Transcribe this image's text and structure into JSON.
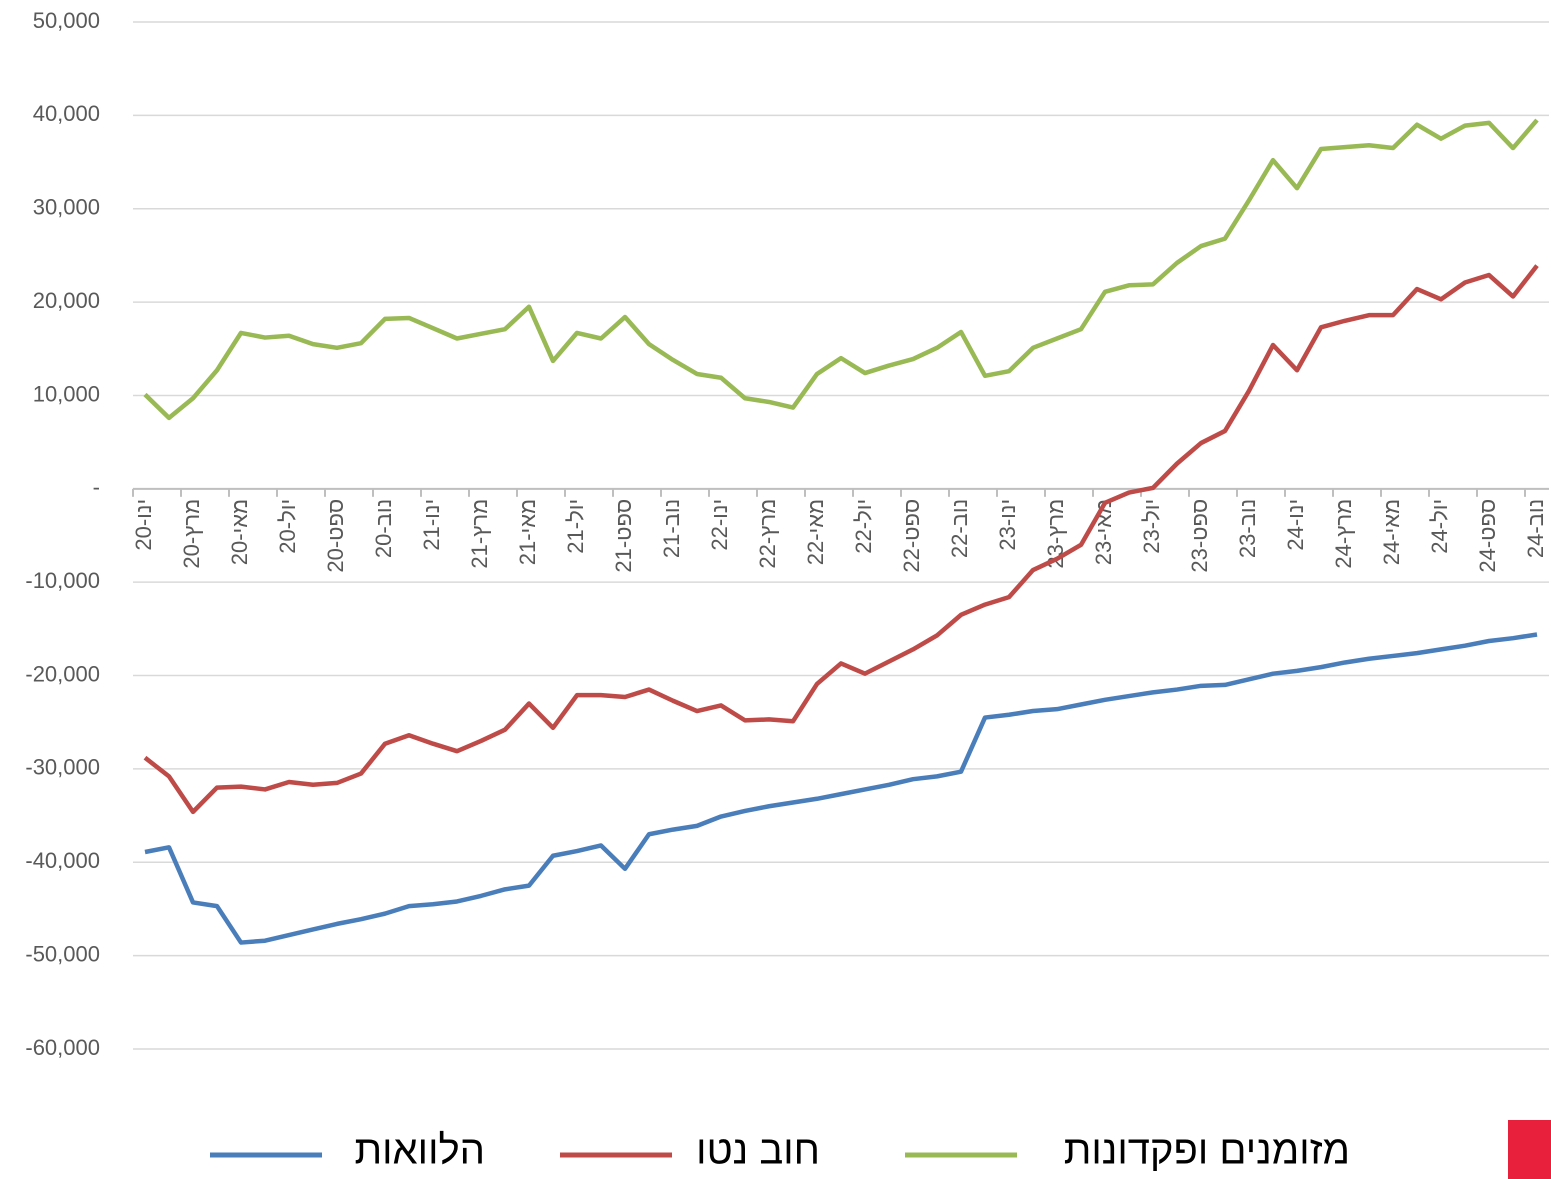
{
  "chart_data": {
    "type": "line",
    "categories": [
      "ינו-20",
      null,
      "מרץ-20",
      null,
      "מאי-20",
      null,
      "יול-20",
      null,
      "ספט-20",
      null,
      "נוב-20",
      null,
      "ינו-21",
      null,
      "מרץ-21",
      null,
      "מאי-21",
      null,
      "יול-21",
      null,
      "ספט-21",
      null,
      "נוב-21",
      null,
      "ינו-22",
      null,
      "מרץ-22",
      null,
      "מאי-22",
      null,
      "יול-22",
      null,
      "ספט-22",
      null,
      "נוב-22",
      null,
      "ינו-23",
      null,
      "מרץ-23",
      null,
      "מאי-23",
      null,
      "יול-23",
      null,
      "ספט-23",
      null,
      "נוב-23",
      null,
      "ינו-24",
      null,
      "מרץ-24",
      null,
      "מאי-24",
      null,
      "יול-24",
      null,
      "ספט-24",
      null,
      "נוב-24"
    ],
    "series": [
      {
        "name": "הלוואות",
        "color": "#4a7ebb",
        "values": [
          -38900,
          -38400,
          -44300,
          -44700,
          -48600,
          -48400,
          -47800,
          -47200,
          -46600,
          -46100,
          -45500,
          -44700,
          -44500,
          -44200,
          -43600,
          -42900,
          -42500,
          -39300,
          -38800,
          -38200,
          -40700,
          -37000,
          -36500,
          -36100,
          -35100,
          -34500,
          -34000,
          -33600,
          -33200,
          -32700,
          -32200,
          -31700,
          -31100,
          -30800,
          -30300,
          -24500,
          -24200,
          -23800,
          -23600,
          -23100,
          -22600,
          -22200,
          -21800,
          -21500,
          -21100,
          -21000,
          -20400,
          -19800,
          -19500,
          -19100,
          -18600,
          -18200,
          -17900,
          -17600,
          -17200,
          -16800,
          -16300,
          -16000,
          -15600
        ]
      },
      {
        "name": "חוב נטו",
        "color": "#be4b48",
        "values": [
          -28800,
          -30800,
          -34600,
          -32000,
          -31900,
          -32200,
          -31400,
          -31700,
          -31500,
          -30500,
          -27300,
          -26400,
          -27300,
          -28100,
          -27000,
          -25800,
          -23000,
          -25600,
          -22100,
          -22100,
          -22300,
          -21500,
          -22700,
          -23800,
          -23200,
          -24800,
          -24700,
          -24900,
          -20900,
          -18700,
          -19800,
          -18500,
          -17200,
          -15700,
          -13500,
          -12400,
          -11600,
          -8700,
          -7500,
          -6000,
          -1500,
          -400,
          100,
          2700,
          4900,
          6200,
          10500,
          15400,
          12700,
          17300,
          18000,
          18600,
          18600,
          21400,
          20300,
          22100,
          22900,
          20600,
          23900
        ]
      },
      {
        "name": "מזומנים ופקדונות",
        "color": "#98b954",
        "values": [
          10100,
          7600,
          9700,
          12700,
          16700,
          16200,
          16400,
          15500,
          15100,
          15600,
          18200,
          18300,
          17200,
          16100,
          16600,
          17100,
          19500,
          13700,
          16700,
          16100,
          18400,
          15500,
          13800,
          12300,
          11900,
          9700,
          9300,
          8700,
          12300,
          14000,
          12400,
          13200,
          13900,
          15100,
          16800,
          12100,
          12600,
          15100,
          16100,
          17100,
          21100,
          21800,
          21900,
          24200,
          26000,
          26800,
          30900,
          35200,
          32200,
          36400,
          36600,
          36800,
          36500,
          39000,
          37500,
          38900,
          39200,
          36500,
          39500
        ]
      }
    ],
    "ylim": [
      -60000,
      50000
    ],
    "yticks": [
      {
        "value": -60000,
        "label": "-60,000"
      },
      {
        "value": -50000,
        "label": "-50,000"
      },
      {
        "value": -40000,
        "label": "-40,000"
      },
      {
        "value": -30000,
        "label": "-30,000"
      },
      {
        "value": -20000,
        "label": "-20,000"
      },
      {
        "value": -10000,
        "label": "-10,000"
      },
      {
        "value": 0,
        "label": "-"
      },
      {
        "value": 10000,
        "label": "10,000"
      },
      {
        "value": 20000,
        "label": "20,000"
      },
      {
        "value": 30000,
        "label": "30,000"
      },
      {
        "value": 40000,
        "label": "40,000"
      },
      {
        "value": 50000,
        "label": "50,000"
      }
    ],
    "grid": true,
    "legend": "bottom"
  }
}
